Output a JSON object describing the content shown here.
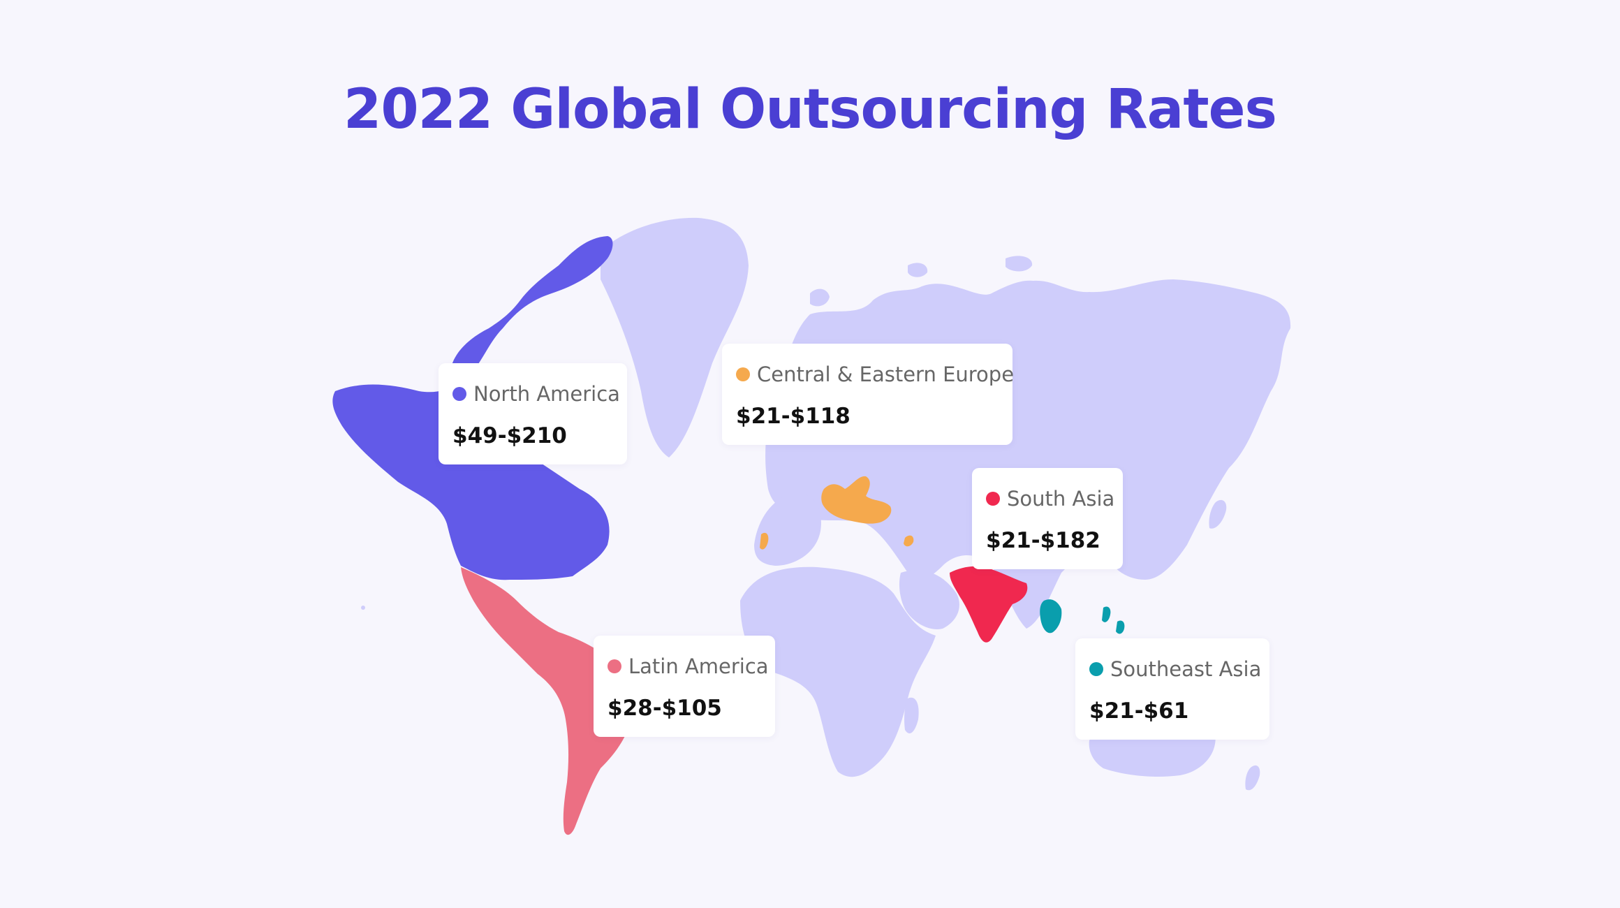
{
  "title": "2022 Global Outsourcing Rates",
  "colors": {
    "background": "#f7f6fd",
    "land": "#cfcdfb",
    "title": "#4a3fd3"
  },
  "regions": [
    {
      "key": "north_america",
      "name": "North America",
      "rate": "$49-$210",
      "color": "#625ae8"
    },
    {
      "key": "central_eastern_europe",
      "name": "Central & Eastern Europe",
      "rate": "$21-$118",
      "color": "#f5a94d"
    },
    {
      "key": "south_asia",
      "name": "South Asia",
      "rate": "$21-$182",
      "color": "#f0284f"
    },
    {
      "key": "latin_america",
      "name": "Latin America",
      "rate": "$28-$105",
      "color": "#ec6f83"
    },
    {
      "key": "southeast_asia",
      "name": "Southeast Asia",
      "rate": "$21-$61",
      "color": "#0a9ead"
    }
  ]
}
